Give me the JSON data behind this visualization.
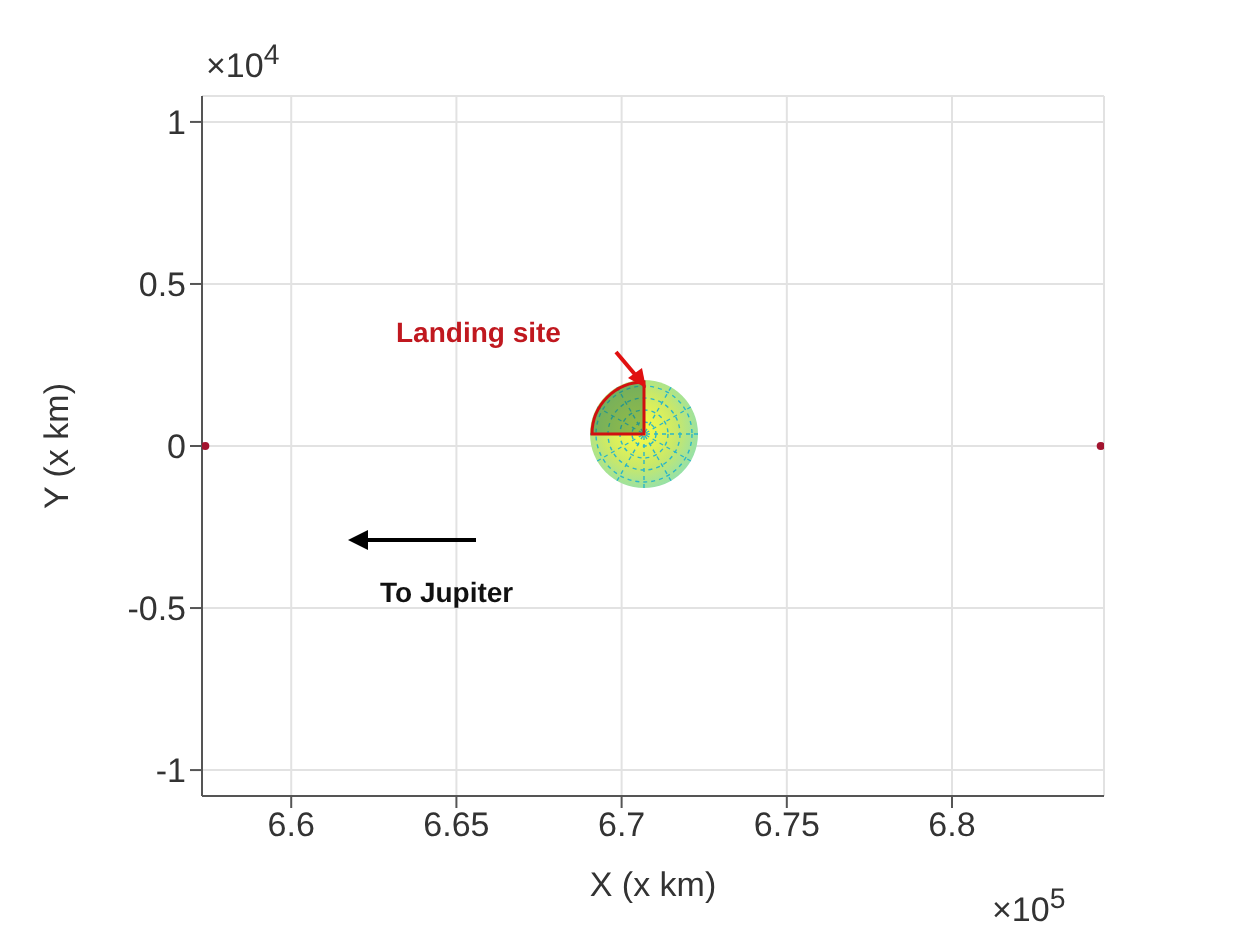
{
  "chart_data": {
    "type": "scatter",
    "xlabel": "X (x km)",
    "ylabel": "Y (x km)",
    "x": [
      6.574,
      6.845
    ],
    "series": [
      {
        "color": "#a2142f",
        "values": [
          0,
          0
        ]
      }
    ],
    "marker": "circle",
    "grid": true,
    "xlim": [
      6.573,
      6.846
    ],
    "xticks": [
      6.6,
      6.65,
      6.7,
      6.75,
      6.8
    ],
    "ylim": [
      -1.08,
      1.08
    ],
    "yticks": [
      -1,
      -0.5,
      0,
      0.5,
      1
    ],
    "annotations": [
      "×10$^{4}$",
      "×10$^{5}$",
      "Landing site",
      "To Jupiter"
    ]
  }
}
